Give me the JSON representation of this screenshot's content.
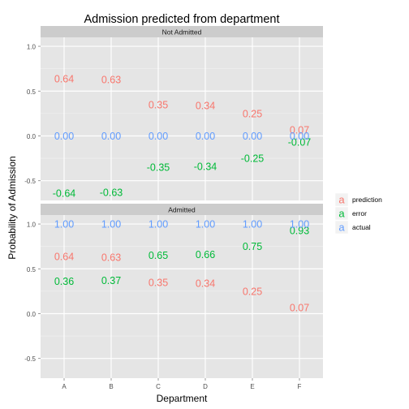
{
  "chart_data": {
    "type": "scatter",
    "title": "Admission predicted from department",
    "xlabel": "Department",
    "ylabel": "Probability of Admission",
    "categories": [
      "A",
      "B",
      "C",
      "D",
      "E",
      "F"
    ],
    "ylim": [
      -0.72,
      1.1
    ],
    "yticks": [
      -0.5,
      0.0,
      0.5,
      1.0
    ],
    "ytick_labels": [
      "-0.5",
      "0.0",
      "0.5",
      "1.0"
    ],
    "grid": true,
    "legend_position": "right",
    "legend_key_glyph": "a",
    "series_colors": {
      "prediction": "#F8766D",
      "error": "#00BA38",
      "actual": "#619CFF"
    },
    "legend": [
      {
        "name": "prediction",
        "color": "#F8766D"
      },
      {
        "name": "error",
        "color": "#00BA38"
      },
      {
        "name": "actual",
        "color": "#619CFF"
      }
    ],
    "panels": [
      {
        "label": "Not Admitted",
        "series": [
          {
            "name": "prediction",
            "values": [
              0.64,
              0.63,
              0.35,
              0.34,
              0.25,
              0.07
            ],
            "labels": [
              "0.64",
              "0.63",
              "0.35",
              "0.34",
              "0.25",
              "0.07"
            ]
          },
          {
            "name": "error",
            "values": [
              -0.64,
              -0.63,
              -0.35,
              -0.34,
              -0.25,
              -0.07
            ],
            "labels": [
              "-0.64",
              "-0.63",
              "-0.35",
              "-0.34",
              "-0.25",
              "-0.07"
            ]
          },
          {
            "name": "actual",
            "values": [
              0.0,
              0.0,
              0.0,
              0.0,
              0.0,
              0.0
            ],
            "labels": [
              "0.00",
              "0.00",
              "0.00",
              "0.00",
              "0.00",
              "0.00"
            ]
          }
        ]
      },
      {
        "label": "Admitted",
        "series": [
          {
            "name": "prediction",
            "values": [
              0.64,
              0.63,
              0.35,
              0.34,
              0.25,
              0.07
            ],
            "labels": [
              "0.64",
              "0.63",
              "0.35",
              "0.34",
              "0.25",
              "0.07"
            ]
          },
          {
            "name": "error",
            "values": [
              0.36,
              0.37,
              0.65,
              0.66,
              0.75,
              0.93
            ],
            "labels": [
              "0.36",
              "0.37",
              "0.65",
              "0.66",
              "0.75",
              "0.93"
            ]
          },
          {
            "name": "actual",
            "values": [
              1.0,
              1.0,
              1.0,
              1.0,
              1.0,
              1.0
            ],
            "labels": [
              "1.00",
              "1.00",
              "1.00",
              "1.00",
              "1.00",
              "1.00"
            ]
          }
        ]
      }
    ]
  }
}
